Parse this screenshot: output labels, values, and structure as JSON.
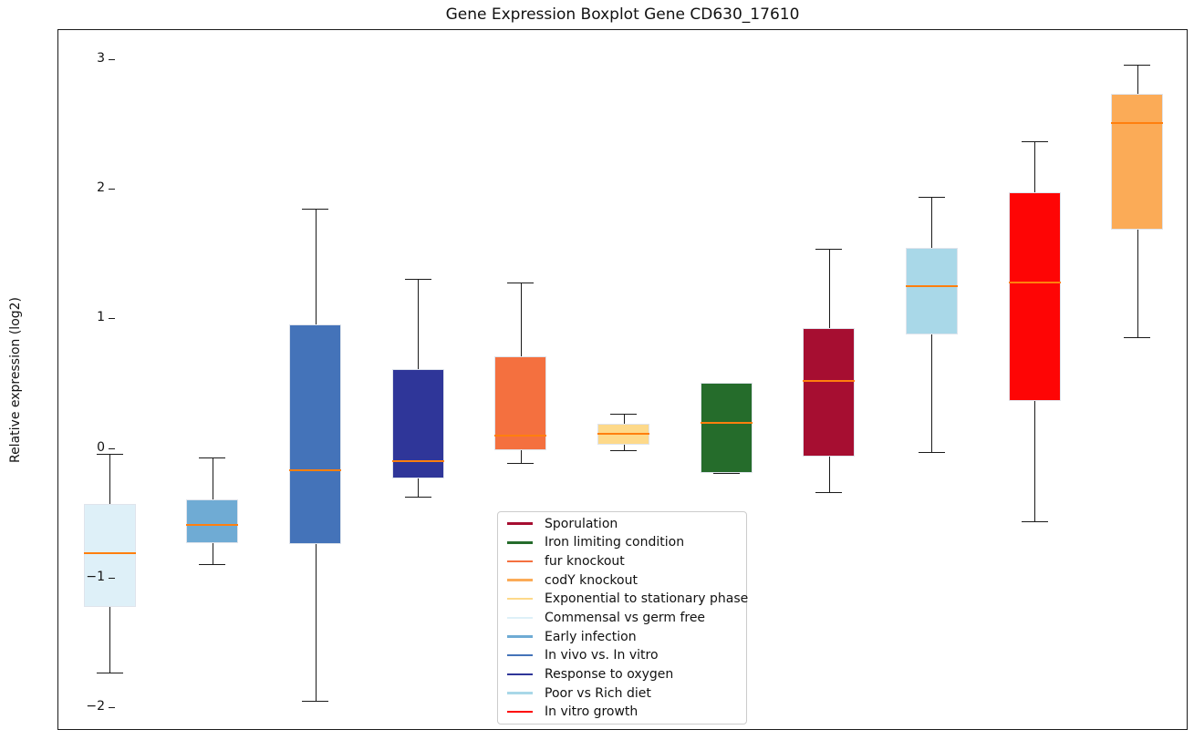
{
  "title": "Gene Expression Boxplot Gene CD630_17610",
  "y_axis": {
    "label": "Relative expression (log2)",
    "tick_labels": [
      "3",
      "2",
      "1",
      "0",
      "−1",
      "−2"
    ],
    "tick_values": [
      3,
      2,
      1,
      0,
      -1,
      -2
    ]
  },
  "legend": {
    "order": [
      "Sporulation",
      "Iron limiting condition",
      "fur knockout",
      "codY knockout",
      "Exponential to stationary phase",
      "Commensal vs germ free",
      "Early infection",
      "In vivo vs. In vitro",
      "Response to oxygen",
      "Poor vs Rich diet",
      "In vitro growth"
    ]
  },
  "colors": {
    "median_line": "#ff7f0e",
    "whisker": "#1a1a1a",
    "spine": "#1a1a1a",
    "legend_border": "#cccccc"
  },
  "chart_data": {
    "type": "boxplot",
    "title": "Gene Expression Boxplot Gene CD630_17610",
    "xlabel": "",
    "ylabel": "Relative expression (log2)",
    "ylim": [
      -2.17,
      3.24
    ],
    "yticks": [
      3,
      2,
      1,
      0,
      -1,
      -2
    ],
    "grid": false,
    "legend_position": "lower center",
    "series": [
      {
        "name": "Commensal vs germ free",
        "color": "#def0f8",
        "whisker_low": -1.72,
        "q1": -1.21,
        "median": -0.8,
        "q3": -0.42,
        "whisker_high": -0.03
      },
      {
        "name": "Early infection",
        "color": "#6fabd4",
        "whisker_low": -0.88,
        "q1": -0.72,
        "median": -0.58,
        "q3": -0.38,
        "whisker_high": -0.06
      },
      {
        "name": "In vivo vs. In vitro",
        "color": "#4473b9",
        "whisker_low": -1.94,
        "q1": -0.73,
        "median": -0.16,
        "q3": 0.97,
        "whisker_high": 1.86
      },
      {
        "name": "Response to oxygen",
        "color": "#2f3699",
        "whisker_low": -0.36,
        "q1": -0.22,
        "median": -0.09,
        "q3": 0.62,
        "whisker_high": 1.32
      },
      {
        "name": "fur knockout",
        "color": "#f4703f",
        "whisker_low": -0.1,
        "q1": 0.0,
        "median": 0.11,
        "q3": 0.72,
        "whisker_high": 1.29
      },
      {
        "name": "Exponential to stationary phase",
        "color": "#fdd98a",
        "whisker_low": 0.0,
        "q1": 0.04,
        "median": 0.12,
        "q3": 0.2,
        "whisker_high": 0.28
      },
      {
        "name": "Iron limiting condition",
        "color": "#256c2b",
        "whisker_low": -0.18,
        "q1": -0.18,
        "median": 0.21,
        "q3": 0.52,
        "whisker_high": 0.52
      },
      {
        "name": "Sporulation",
        "color": "#a60e31",
        "whisker_low": -0.33,
        "q1": -0.05,
        "median": 0.53,
        "q3": 0.94,
        "whisker_high": 1.55
      },
      {
        "name": "Poor vs Rich diet",
        "color": "#a9d8e8",
        "whisker_low": -0.02,
        "q1": 0.89,
        "median": 1.26,
        "q3": 1.56,
        "whisker_high": 1.95
      },
      {
        "name": "In vitro growth",
        "color": "#fe0505",
        "whisker_low": -0.55,
        "q1": 0.38,
        "median": 1.29,
        "q3": 1.99,
        "whisker_high": 2.38
      },
      {
        "name": "codY knockout",
        "color": "#fbab57",
        "whisker_low": 0.87,
        "q1": 1.7,
        "median": 2.52,
        "q3": 2.75,
        "whisker_high": 2.97
      }
    ]
  }
}
